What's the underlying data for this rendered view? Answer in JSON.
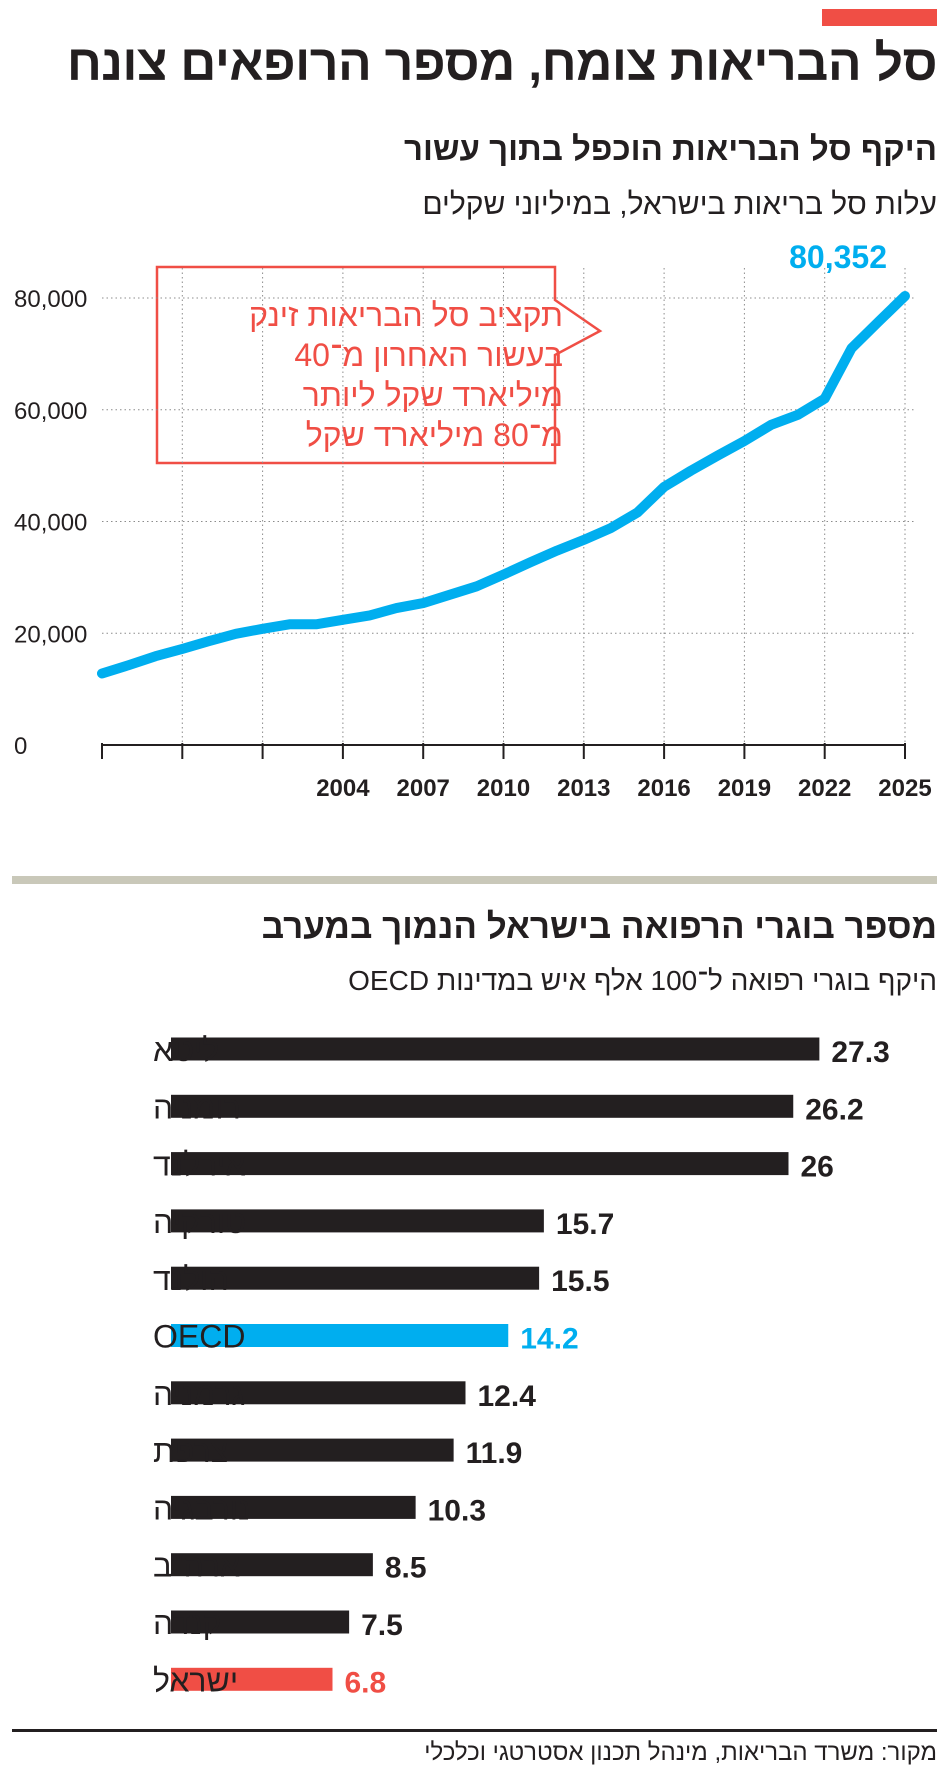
{
  "header": {
    "title": "סל הבריאות צומח, מספר הרופאים צונח",
    "accent_color": "#f04e45"
  },
  "line_section": {
    "title": "היקף סל הבריאות הוכפל בתוך עשור",
    "subtitle": "עלות סל בריאות בישראל, במיליוני שקלים",
    "callout_lines": [
      "תקציב סל הבריאות זינק",
      "בעשור האחרון מ־40",
      "מיליארד שקל ליותר",
      "מ־80 מיליארד שקל"
    ],
    "end_label": "80,352"
  },
  "bar_section": {
    "title": "מספר  בוגרי הרפואה בישראל הנמוך במערב",
    "subtitle": "היקף בוגרי רפואה ל־100 אלף איש במדינות OECD"
  },
  "footer": {
    "source": "מקור: משרד הבריאות, מינהל תכנון אסטרטגי וכלכלי"
  },
  "chart_data": [
    {
      "type": "line",
      "title": "היקף סל הבריאות הוכפל בתוך עשור",
      "ylabel": "עלות סל בריאות בישראל, במיליוני שקלים",
      "ylim": [
        0,
        80000
      ],
      "yticks": [
        0,
        20000,
        40000,
        60000,
        80000
      ],
      "ytick_labels": [
        "0",
        "20,000",
        "40,000",
        "60,000",
        "80,000"
      ],
      "xlim": [
        1995,
        2025
      ],
      "xticks_all": [
        1995,
        1998,
        2001,
        2004,
        2007,
        2010,
        2013,
        2016,
        2019,
        2022,
        2025
      ],
      "xtick_labels": [
        "2004",
        "2007",
        "2010",
        "2013",
        "2016",
        "2019",
        "2022",
        "2025"
      ],
      "grid": "vertical dotted",
      "color": "#00aeef",
      "series": [
        {
          "x": [
            1995,
            1996,
            1997,
            1998,
            1999,
            2000,
            2001,
            2002,
            2003,
            2004,
            2005,
            2006,
            2007,
            2008,
            2009,
            2010,
            2011,
            2012,
            2013,
            2014,
            2015,
            2016,
            2017,
            2018,
            2019,
            2020,
            2021,
            2022,
            2023,
            2024,
            2025
          ],
          "y": [
            12800,
            14300,
            15900,
            17200,
            18600,
            19900,
            20800,
            21600,
            21600,
            22400,
            23200,
            24500,
            25400,
            26900,
            28400,
            30500,
            32700,
            34800,
            36700,
            38800,
            41600,
            46200,
            49100,
            51800,
            54400,
            57300,
            59100,
            62000,
            71000,
            75700,
            80352
          ]
        }
      ],
      "annotation": "80,352"
    },
    {
      "type": "bar",
      "orientation": "horizontal",
      "title": "מספר  בוגרי הרפואה בישראל הנמוך במערב",
      "ylabel": "היקף בוגרי רפואה ל־100 אלף איש במדינות OECD",
      "categories": [
        "ליטא",
        "רומניה",
        "אירלנד",
        "טורקיה",
        "הולנד",
        "OECD",
        "גרמניה",
        "צרפת",
        "נורבגיה",
        "ארה\"ב",
        "קנדה",
        "ישראל"
      ],
      "values": [
        27.3,
        26.2,
        26,
        15.7,
        15.5,
        14.2,
        12.4,
        11.9,
        10.3,
        8.5,
        7.5,
        6.8
      ],
      "labels": [
        "27.3",
        "26.2",
        "26",
        "15.7",
        "15.5",
        "14.2",
        "12.4",
        "11.9",
        "10.3",
        "8.5",
        "7.5",
        "6.8"
      ],
      "colors": [
        "#231f20",
        "#231f20",
        "#231f20",
        "#231f20",
        "#231f20",
        "#00aeef",
        "#231f20",
        "#231f20",
        "#231f20",
        "#231f20",
        "#231f20",
        "#f04e45"
      ]
    }
  ]
}
